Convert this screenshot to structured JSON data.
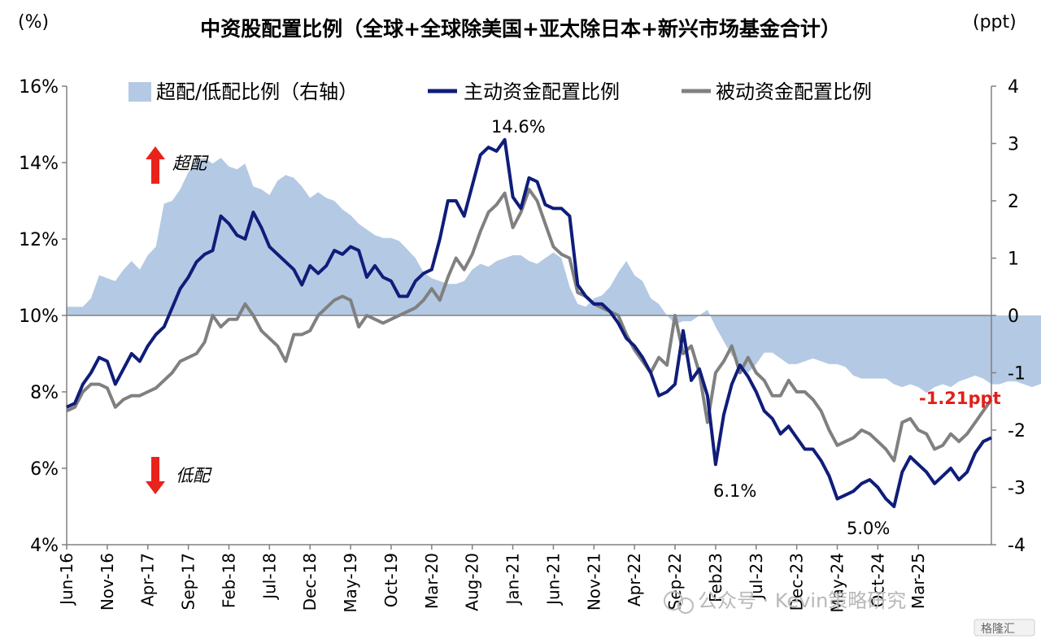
{
  "chart_data": {
    "type": "line",
    "title": "中资股配置比例（全球+全球除美国+亚太除日本+新兴市场基金合计）",
    "left_unit": "(%)",
    "right_unit": "(ppt)",
    "ylim_left": [
      4,
      16
    ],
    "ylim_right": [
      -4,
      4
    ],
    "left_ticks": [
      "4%",
      "6%",
      "8%",
      "10%",
      "12%",
      "14%",
      "16%"
    ],
    "right_ticks": [
      "-4",
      "-3",
      "-2",
      "-1",
      "0",
      "1",
      "2",
      "3",
      "4"
    ],
    "x_tick_labels": [
      "Jun-16",
      "Nov-16",
      "Apr-17",
      "Sep-17",
      "Feb-18",
      "Jul-18",
      "Dec-18",
      "May-19",
      "Oct-19",
      "Mar-20",
      "Aug-20",
      "Jan-21",
      "Jun-21",
      "Nov-21",
      "Apr-22",
      "Sep-22",
      "Feb23",
      "Jul-23",
      "Dec-23",
      "May-24",
      "Oct-24",
      "Mar-25"
    ],
    "x_start": "2016-06",
    "x_end": "2025-03",
    "legend": [
      "超配/低配比例（右轴）",
      "主动资金配置比例",
      "被动资金配置比例"
    ],
    "series": [
      {
        "name": "超配/低配比例（右轴）",
        "kind": "area",
        "axis": "right",
        "color": "#b4c9e3",
        "values": [
          0.15,
          0.15,
          0.15,
          0.3,
          0.7,
          0.65,
          0.6,
          0.8,
          0.95,
          0.8,
          1.05,
          1.2,
          1.95,
          2.0,
          2.2,
          2.5,
          2.7,
          2.75,
          2.65,
          2.75,
          2.6,
          2.55,
          2.65,
          2.25,
          2.2,
          2.1,
          2.35,
          2.45,
          2.4,
          2.25,
          2.05,
          2.15,
          2.05,
          2.0,
          1.85,
          1.75,
          1.6,
          1.5,
          1.4,
          1.35,
          1.35,
          1.3,
          1.15,
          1.0,
          0.75,
          0.65,
          0.6,
          0.55,
          0.55,
          0.6,
          0.8,
          0.9,
          0.85,
          0.95,
          1.0,
          1.05,
          1.05,
          0.95,
          0.9,
          1.0,
          1.1,
          1.0,
          0.5,
          0.2,
          0.15,
          0.3,
          0.35,
          0.5,
          0.75,
          0.95,
          0.7,
          0.6,
          0.3,
          0.2,
          0.0,
          -0.15,
          -0.1,
          -0.1,
          0.0,
          0.1,
          -0.2,
          -0.45,
          -0.7,
          -0.85,
          -1.0,
          -0.85,
          -0.65,
          -0.65,
          -0.75,
          -0.85,
          -0.85,
          -0.8,
          -0.75,
          -0.8,
          -0.85,
          -0.85,
          -0.9,
          -1.05,
          -1.1,
          -1.1,
          -1.1,
          -1.1,
          -1.2,
          -1.25,
          -1.2,
          -1.25,
          -1.35,
          -1.25,
          -1.2,
          -1.25,
          -1.15,
          -1.1,
          -1.05,
          -1.1,
          -1.2,
          -1.2,
          -1.15,
          -1.15,
          -1.2,
          -1.25,
          -1.2,
          -1.15,
          -1.2,
          -1.21
        ]
      },
      {
        "name": "主动资金配置比例",
        "kind": "line",
        "axis": "left",
        "color": "#0f1d7a",
        "values": [
          7.6,
          7.7,
          8.2,
          8.5,
          8.9,
          8.8,
          8.2,
          8.6,
          9.0,
          8.8,
          9.2,
          9.5,
          9.7,
          10.2,
          10.7,
          11.0,
          11.4,
          11.6,
          11.7,
          12.6,
          12.4,
          12.1,
          12.0,
          12.7,
          12.3,
          11.8,
          11.6,
          11.4,
          11.2,
          10.8,
          11.3,
          11.1,
          11.3,
          11.7,
          11.6,
          11.8,
          11.7,
          11.0,
          11.3,
          11.0,
          10.9,
          10.5,
          10.5,
          10.9,
          11.1,
          11.2,
          12.0,
          13.0,
          13.0,
          12.6,
          13.4,
          14.2,
          14.4,
          14.3,
          14.6,
          13.1,
          12.8,
          13.6,
          13.5,
          12.9,
          12.8,
          12.8,
          12.6,
          10.8,
          10.5,
          10.3,
          10.3,
          10.1,
          9.8,
          9.4,
          9.2,
          8.9,
          8.5,
          7.9,
          8.0,
          8.2,
          9.6,
          8.3,
          8.6,
          7.9,
          6.1,
          7.4,
          8.2,
          8.7,
          8.4,
          8.0,
          7.5,
          7.3,
          6.9,
          7.1,
          6.8,
          6.5,
          6.5,
          6.2,
          5.8,
          5.2,
          5.3,
          5.4,
          5.6,
          5.7,
          5.5,
          5.2,
          5.0,
          5.9,
          6.3,
          6.1,
          5.9,
          5.6,
          5.8,
          6.0,
          5.7,
          5.9,
          6.4,
          6.7,
          6.8
        ]
      },
      {
        "name": "被动资金配置比例",
        "kind": "line",
        "axis": "left",
        "color": "#808080",
        "values": [
          7.5,
          7.6,
          8.0,
          8.2,
          8.2,
          8.1,
          7.6,
          7.8,
          7.9,
          7.9,
          8.0,
          8.1,
          8.3,
          8.5,
          8.8,
          8.9,
          9.0,
          9.3,
          10.0,
          9.7,
          9.9,
          9.9,
          10.3,
          10.0,
          9.6,
          9.4,
          9.2,
          8.8,
          9.5,
          9.5,
          9.6,
          10.0,
          10.2,
          10.4,
          10.5,
          10.4,
          9.7,
          10.0,
          9.9,
          9.8,
          9.9,
          10.0,
          10.1,
          10.2,
          10.4,
          10.7,
          10.4,
          11.0,
          11.5,
          11.2,
          11.6,
          12.2,
          12.7,
          12.9,
          13.2,
          12.3,
          12.7,
          13.3,
          13.0,
          12.4,
          11.8,
          11.6,
          11.5,
          10.6,
          10.5,
          10.3,
          10.2,
          10.1,
          10.0,
          9.5,
          9.1,
          8.8,
          8.5,
          8.9,
          8.7,
          10.0,
          9.0,
          9.2,
          8.5,
          7.2,
          8.5,
          8.8,
          9.2,
          8.5,
          8.9,
          8.5,
          8.3,
          7.9,
          7.9,
          8.3,
          8.0,
          8.0,
          7.8,
          7.5,
          7.0,
          6.6,
          6.7,
          6.8,
          7.0,
          6.9,
          6.7,
          6.5,
          6.2,
          7.2,
          7.3,
          7.0,
          6.9,
          6.5,
          6.6,
          6.9,
          6.7,
          6.9,
          7.2,
          7.5,
          7.8
        ]
      }
    ],
    "annotations": [
      "14.6%",
      "6.1%",
      "5.0%",
      "-1.21ppt"
    ],
    "arrow_labels": {
      "up": "超配",
      "down": "低配"
    }
  },
  "watermark": "公众号 · Kevin策略研究",
  "watermark_corner": "格隆汇",
  "colors": {
    "area": "#b4c9e3",
    "active": "#0f1d7a",
    "passive": "#808080",
    "arrow": "#e8231c",
    "highlight_red": "#e0201a"
  }
}
